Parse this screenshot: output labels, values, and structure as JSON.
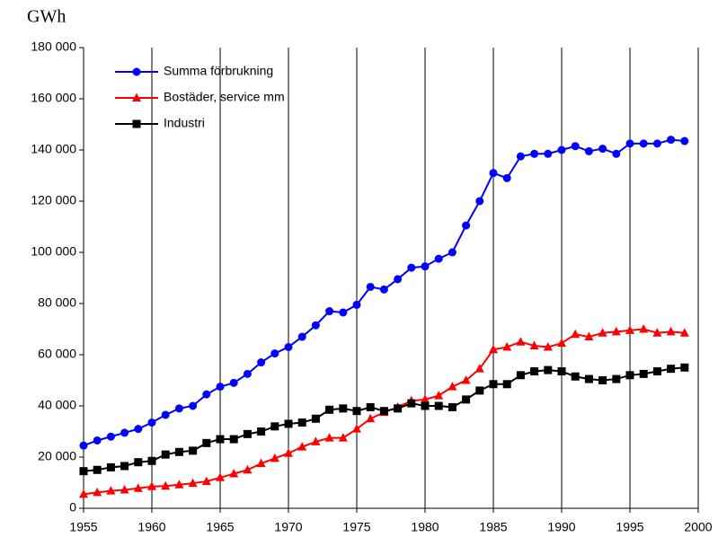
{
  "chart_data": {
    "type": "line",
    "y_label": "GWh",
    "x": [
      1955,
      1956,
      1957,
      1958,
      1959,
      1960,
      1961,
      1962,
      1963,
      1964,
      1965,
      1966,
      1967,
      1968,
      1969,
      1970,
      1971,
      1972,
      1973,
      1974,
      1975,
      1976,
      1977,
      1978,
      1979,
      1980,
      1981,
      1982,
      1983,
      1984,
      1985,
      1986,
      1987,
      1988,
      1989,
      1990,
      1991,
      1992,
      1993,
      1994,
      1995,
      1996,
      1997,
      1998,
      1999
    ],
    "series": [
      {
        "name": "Summa förbrukning",
        "color": "#0000ff",
        "marker": "circle",
        "values": [
          24500,
          26500,
          28000,
          29500,
          31000,
          33500,
          36500,
          39000,
          40000,
          44500,
          47500,
          49000,
          52500,
          57000,
          60500,
          63000,
          67000,
          71500,
          77000,
          76500,
          79500,
          86500,
          85500,
          89500,
          94000,
          94500,
          97500,
          100000,
          110500,
          120000,
          131000,
          129000,
          137500,
          138500,
          138500,
          140000,
          141500,
          139500,
          140500,
          138500,
          142500,
          142500,
          142500,
          144000,
          143500
        ]
      },
      {
        "name": "Bostäder, service mm",
        "color": "#ff0000",
        "marker": "triangle",
        "values": [
          5500,
          6200,
          6800,
          7200,
          7800,
          8500,
          8700,
          9200,
          9800,
          10500,
          12000,
          13500,
          15000,
          17500,
          19500,
          21500,
          24000,
          26000,
          27500,
          27500,
          31000,
          35000,
          37500,
          39500,
          42000,
          42500,
          44000,
          47500,
          50000,
          54500,
          62000,
          63000,
          65000,
          63500,
          63000,
          64500,
          68000,
          67000,
          68500,
          69000,
          69500,
          70000,
          68500,
          69000,
          68500
        ]
      },
      {
        "name": "Industri",
        "color": "#000000",
        "marker": "square",
        "values": [
          14500,
          15000,
          16000,
          16500,
          18000,
          18500,
          21000,
          22000,
          22500,
          25500,
          27000,
          27000,
          29000,
          30000,
          32000,
          33000,
          33500,
          35000,
          38500,
          39000,
          38000,
          39500,
          38000,
          39000,
          41000,
          40000,
          40000,
          39500,
          42500,
          46000,
          48500,
          48500,
          52000,
          53500,
          54000,
          53500,
          51500,
          50500,
          50000,
          50500,
          52000,
          52500,
          53500,
          54500,
          55000
        ]
      }
    ],
    "xlim": [
      1955,
      2000
    ],
    "xticks": [
      1955,
      1960,
      1965,
      1970,
      1975,
      1980,
      1985,
      1990,
      1995,
      2000
    ],
    "ylim": [
      0,
      180000
    ],
    "yticks": [
      0,
      {
        "value": 20000,
        "label": "20 000"
      },
      {
        "value": 40000,
        "label": "40 000"
      },
      {
        "value": 60000,
        "label": "60 000"
      },
      {
        "value": 80000,
        "label": "80 000"
      },
      {
        "value": 100000,
        "label": "100 000"
      },
      {
        "value": 120000,
        "label": "120 000"
      },
      {
        "value": 140000,
        "label": "140 000"
      },
      {
        "value": 160000,
        "label": "160 000"
      },
      {
        "value": 180000,
        "label": "180 000"
      }
    ],
    "grid": "x",
    "legend": "upper left"
  }
}
